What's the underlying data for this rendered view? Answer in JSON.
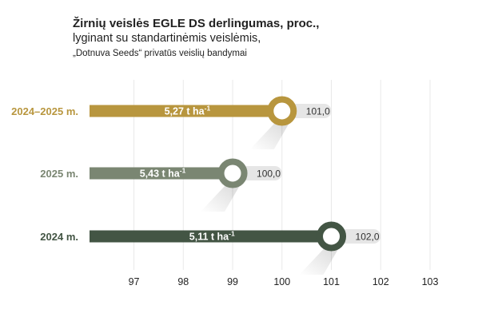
{
  "chart_data": {
    "type": "bar",
    "orientation": "horizontal",
    "title": "Žirnių veislės EGLE DS derlingumas, proc.,",
    "subtitle": "lyginant su standartinėmis veislėmis,",
    "note": "„Dotnuva Seeds“ privatūs veislių bandymai",
    "categories": [
      "2024–2025 m.",
      "2025 m.",
      "2024 m."
    ],
    "values": [
      101.0,
      100.0,
      102.0
    ],
    "value_labels": [
      "101,0",
      "100,0",
      "102,0"
    ],
    "marker_values": [
      100.0,
      99.0,
      101.0
    ],
    "bar_labels": [
      "5,27 t ha",
      "5,43 t ha",
      "5,11 t ha"
    ],
    "bar_label_superscript": "-1",
    "colors": [
      "#B8963E",
      "#7A8672",
      "#435544"
    ],
    "x_ticks": [
      97,
      98,
      99,
      100,
      101,
      102,
      103
    ],
    "xlim": [
      96.1,
      103
    ],
    "grid": true
  }
}
